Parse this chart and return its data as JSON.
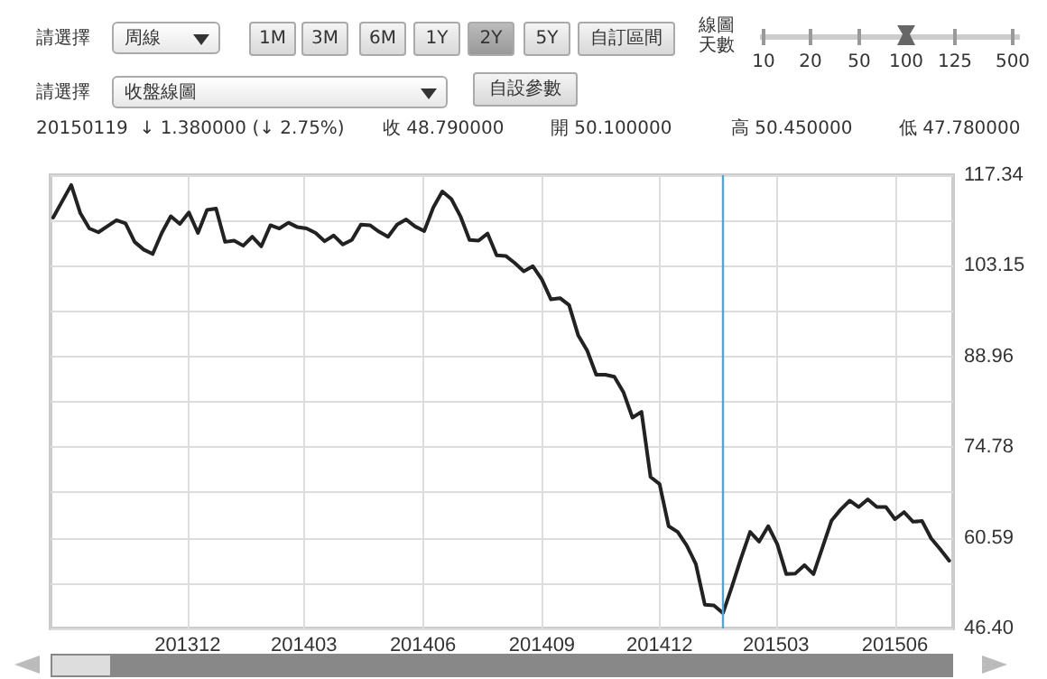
{
  "chart_data": {
    "type": "line",
    "annotations": [
      "請選擇",
      "周線",
      "1M",
      "3M",
      "6M",
      "1Y",
      "2Y",
      "5Y",
      "自訂區間",
      "線圖天數",
      "10",
      "20",
      "50",
      "100",
      "125",
      "500",
      "請選擇",
      "收盤線圖",
      "自設參數",
      "20150119  ↓ 1.380000 (↓ 2.75%)",
      "收 48.790000",
      "開 50.100000",
      "高 50.450000",
      "低 47.780000"
    ],
    "x": [
      "2013-08-19",
      "2013-09-02",
      "2013-09-09",
      "2013-09-16",
      "2013-09-23",
      "2013-10-07",
      "2013-10-14",
      "2013-10-21",
      "2013-10-28",
      "2013-11-04",
      "2013-11-11",
      "2013-11-18",
      "2013-11-25",
      "2013-12-02",
      "2013-12-09",
      "2013-12-16",
      "2013-12-23",
      "2013-12-30",
      "2014-01-06",
      "2014-01-13",
      "2014-01-20",
      "2014-01-27",
      "2014-02-03",
      "2014-02-10",
      "2014-02-17",
      "2014-02-24",
      "2014-03-03",
      "2014-03-10",
      "2014-03-17",
      "2014-03-24",
      "2014-03-31",
      "2014-04-07",
      "2014-04-14",
      "2014-04-21",
      "2014-04-28",
      "2014-05-05",
      "2014-05-12",
      "2014-05-19",
      "2014-05-26",
      "2014-06-02",
      "2014-06-09",
      "2014-06-16",
      "2014-06-23",
      "2014-06-30",
      "2014-07-07",
      "2014-07-14",
      "2014-07-21",
      "2014-07-28",
      "2014-08-04",
      "2014-08-11",
      "2014-08-18",
      "2014-08-25",
      "2014-09-01",
      "2014-09-08",
      "2014-09-15",
      "2014-09-22",
      "2014-09-29",
      "2014-10-06",
      "2014-10-13",
      "2014-10-20",
      "2014-10-27",
      "2014-11-03",
      "2014-11-10",
      "2014-11-17",
      "2014-11-24",
      "2014-12-01",
      "2014-12-08",
      "2014-12-15",
      "2014-12-22",
      "2014-12-29",
      "2015-01-05",
      "2015-01-12",
      "2015-01-19",
      "2015-01-26",
      "2015-02-02",
      "2015-02-09",
      "2015-02-16",
      "2015-02-23",
      "2015-03-02",
      "2015-03-09",
      "2015-03-16",
      "2015-03-23",
      "2015-03-30",
      "2015-04-06",
      "2015-04-13",
      "2015-04-20",
      "2015-04-27",
      "2015-05-04",
      "2015-05-11",
      "2015-05-18",
      "2015-05-25",
      "2015-06-01",
      "2015-06-08",
      "2015-06-15",
      "2015-06-22",
      "2015-06-29",
      "2015-07-06",
      "2015-07-13"
    ],
    "values": [
      110.7,
      115.8,
      111.4,
      109.0,
      108.4,
      110.3,
      109.8,
      106.9,
      105.7,
      105.0,
      108.3,
      110.9,
      109.7,
      111.5,
      108.3,
      111.9,
      112.1,
      106.9,
      107.1,
      106.3,
      107.7,
      106.2,
      109.5,
      109.0,
      109.9,
      109.2,
      109.0,
      108.3,
      107.0,
      107.9,
      106.5,
      107.2,
      109.6,
      109.5,
      108.5,
      107.7,
      109.6,
      110.4,
      109.3,
      108.6,
      112.3,
      114.8,
      113.6,
      110.9,
      107.2,
      107.1,
      108.2,
      104.8,
      104.7,
      103.6,
      102.3,
      103.1,
      101.0,
      97.9,
      98.1,
      97.0,
      92.3,
      89.9,
      86.1,
      86.1,
      85.8,
      83.4,
      79.4,
      80.3,
      70.1,
      69.0,
      62.4,
      61.5,
      59.4,
      56.5,
      50.1,
      50.0,
      48.8,
      53.0,
      57.4,
      61.5,
      60.0,
      62.4,
      59.6,
      54.9,
      55.0,
      56.3,
      54.9,
      59.1,
      63.3,
      65.0,
      66.4,
      65.4,
      66.6,
      65.4,
      65.4,
      63.5,
      64.6,
      63.1,
      63.2,
      60.5,
      58.8,
      57.0
    ],
    "color": "#222222",
    "marker": "none",
    "line_style": "solid",
    "grid": true,
    "xlim": [
      "2013-08-17",
      "2015-07-16"
    ],
    "xticks": [
      {
        "value": "2013-12-01",
        "label": "201312"
      },
      {
        "value": "2014-03-01",
        "label": "201403"
      },
      {
        "value": "2014-06-01",
        "label": "201406"
      },
      {
        "value": "2014-09-01",
        "label": "201409"
      },
      {
        "value": "2014-12-01",
        "label": "201412"
      },
      {
        "value": "2015-03-01",
        "label": "201503"
      },
      {
        "value": "2015-06-01",
        "label": "201506"
      }
    ],
    "ylim": [
      46.4,
      117.34
    ],
    "yticks": [
      {
        "value": 46.4,
        "label": "46.40"
      },
      {
        "value": 53.495,
        "label": null
      },
      {
        "value": 60.59,
        "label": "60.59"
      },
      {
        "value": 67.685,
        "label": null
      },
      {
        "value": 74.78,
        "label": "74.78"
      },
      {
        "value": 81.87,
        "label": null
      },
      {
        "value": 88.96,
        "label": "88.96"
      },
      {
        "value": 96.055,
        "label": null
      },
      {
        "value": 103.15,
        "label": "103.15"
      },
      {
        "value": 110.245,
        "label": null
      },
      {
        "value": 117.34,
        "label": "117.34"
      }
    ],
    "ref_lines": [
      {
        "axis": "x",
        "value": "2015-01-19",
        "color": "#5ba3cf"
      }
    ]
  }
}
